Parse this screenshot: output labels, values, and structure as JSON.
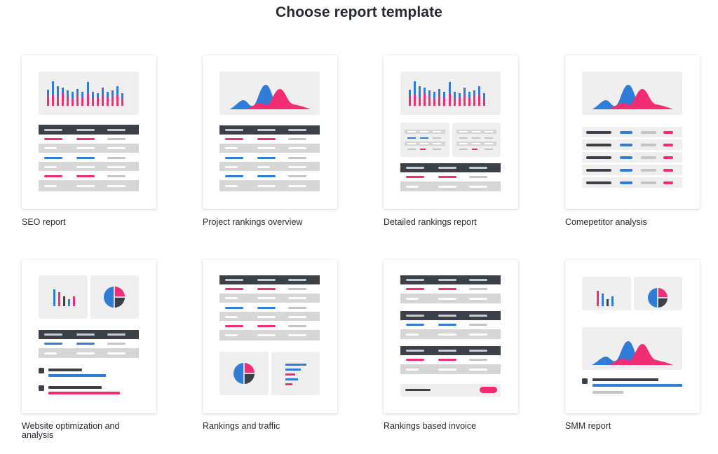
{
  "page": {
    "title": "Choose report template"
  },
  "templates": [
    {
      "id": "seo-report",
      "label": "SEO report"
    },
    {
      "id": "project-rankings-overview",
      "label": "Project rankings overview"
    },
    {
      "id": "detailed-rankings-report",
      "label": "Detailed rankings report"
    },
    {
      "id": "competitor-analysis",
      "label": "Comepetitor analysis"
    },
    {
      "id": "website-optimization",
      "label": "Website optimization and analysis"
    },
    {
      "id": "rankings-and-traffic",
      "label": "Rankings and traffic"
    },
    {
      "id": "rankings-based-invoice",
      "label": "Rankings based invoice"
    },
    {
      "id": "smm-report",
      "label": "SMM report"
    }
  ],
  "colors": {
    "dark": "#3b4049",
    "pink": "#f22d74",
    "blue": "#2f7dd8",
    "panel": "#efefef",
    "row_gray": "#d6d6d6",
    "line_gray": "#c4c4c4"
  }
}
